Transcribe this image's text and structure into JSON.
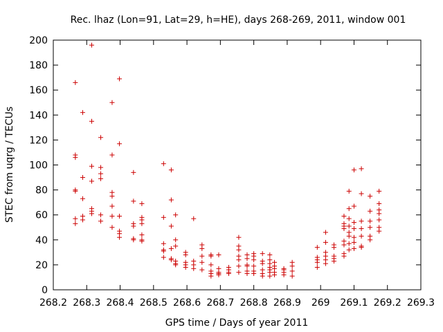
{
  "chart_data": {
    "type": "scatter",
    "title": "Rec. lhaz (Lon=91, Lat=29, h=HE), days 268-269, 2011, window 001",
    "xlabel": "GPS time / Days of year 2011",
    "ylabel": "STEC from uqrg / TECUs",
    "xlim": [
      268.2,
      269.3
    ],
    "ylim": [
      0,
      200
    ],
    "x_ticks": [
      268.2,
      268.3,
      268.4,
      268.5,
      268.6,
      268.7,
      268.8,
      268.9,
      269,
      269.1,
      269.2,
      269.3
    ],
    "x_tick_labels": [
      "268.2",
      "268.3",
      "268.4",
      "268.5",
      "268.6",
      "268.7",
      "268.8",
      "268.9",
      "269",
      "269.1",
      "269.2",
      "269.3"
    ],
    "y_ticks": [
      0,
      20,
      40,
      60,
      80,
      100,
      120,
      140,
      160,
      180,
      200
    ],
    "y_tick_labels": [
      "0",
      "20",
      "40",
      "60",
      "80",
      "100",
      "120",
      "140",
      "160",
      "180",
      "200"
    ],
    "grid": false,
    "marker": "plus",
    "marker_color": "#cc0000",
    "points": [
      [
        268.266,
        166
      ],
      [
        268.266,
        108
      ],
      [
        268.266,
        106
      ],
      [
        268.266,
        80
      ],
      [
        268.266,
        79
      ],
      [
        268.266,
        57
      ],
      [
        268.266,
        53
      ],
      [
        268.288,
        142
      ],
      [
        268.288,
        90
      ],
      [
        268.288,
        73
      ],
      [
        268.288,
        59
      ],
      [
        268.288,
        56
      ],
      [
        268.315,
        196
      ],
      [
        268.315,
        135
      ],
      [
        268.315,
        99
      ],
      [
        268.315,
        87
      ],
      [
        268.315,
        65
      ],
      [
        268.315,
        63
      ],
      [
        268.315,
        61
      ],
      [
        268.342,
        122
      ],
      [
        268.342,
        98
      ],
      [
        268.342,
        93
      ],
      [
        268.342,
        89
      ],
      [
        268.342,
        60
      ],
      [
        268.342,
        55
      ],
      [
        268.376,
        150
      ],
      [
        268.376,
        108
      ],
      [
        268.376,
        78
      ],
      [
        268.376,
        75
      ],
      [
        268.376,
        67
      ],
      [
        268.376,
        59
      ],
      [
        268.376,
        50
      ],
      [
        268.398,
        169
      ],
      [
        268.398,
        117
      ],
      [
        268.398,
        59
      ],
      [
        268.398,
        47
      ],
      [
        268.398,
        45
      ],
      [
        268.398,
        42
      ],
      [
        268.44,
        94
      ],
      [
        268.44,
        71
      ],
      [
        268.44,
        53
      ],
      [
        268.44,
        51
      ],
      [
        268.44,
        41
      ],
      [
        268.44,
        40
      ],
      [
        268.465,
        69
      ],
      [
        268.465,
        58
      ],
      [
        268.465,
        56
      ],
      [
        268.465,
        53
      ],
      [
        268.465,
        44
      ],
      [
        268.465,
        40
      ],
      [
        268.465,
        39
      ],
      [
        268.53,
        101
      ],
      [
        268.53,
        58
      ],
      [
        268.53,
        37
      ],
      [
        268.53,
        32
      ],
      [
        268.53,
        31
      ],
      [
        268.53,
        26
      ],
      [
        268.553,
        96
      ],
      [
        268.553,
        72
      ],
      [
        268.553,
        51
      ],
      [
        268.553,
        33
      ],
      [
        268.553,
        25
      ],
      [
        268.553,
        24
      ],
      [
        268.566,
        60
      ],
      [
        268.566,
        40
      ],
      [
        268.566,
        35
      ],
      [
        268.566,
        23
      ],
      [
        268.566,
        21
      ],
      [
        268.566,
        20
      ],
      [
        268.596,
        30
      ],
      [
        268.596,
        28
      ],
      [
        268.596,
        22
      ],
      [
        268.596,
        20
      ],
      [
        268.596,
        18
      ],
      [
        268.62,
        57
      ],
      [
        268.62,
        23
      ],
      [
        268.62,
        20
      ],
      [
        268.62,
        17
      ],
      [
        268.645,
        36
      ],
      [
        268.645,
        33
      ],
      [
        268.645,
        27
      ],
      [
        268.645,
        22
      ],
      [
        268.645,
        16
      ],
      [
        268.672,
        28
      ],
      [
        268.672,
        27
      ],
      [
        268.672,
        20
      ],
      [
        268.672,
        15
      ],
      [
        268.672,
        13
      ],
      [
        268.672,
        11
      ],
      [
        268.695,
        28
      ],
      [
        268.695,
        17
      ],
      [
        268.695,
        14
      ],
      [
        268.695,
        13
      ],
      [
        268.695,
        12
      ],
      [
        268.725,
        18
      ],
      [
        268.725,
        16
      ],
      [
        268.725,
        14
      ],
      [
        268.725,
        13
      ],
      [
        268.755,
        42
      ],
      [
        268.755,
        35
      ],
      [
        268.755,
        32
      ],
      [
        268.755,
        27
      ],
      [
        268.755,
        24
      ],
      [
        268.755,
        19
      ],
      [
        268.755,
        14
      ],
      [
        268.78,
        28
      ],
      [
        268.78,
        25
      ],
      [
        268.78,
        20
      ],
      [
        268.78,
        19
      ],
      [
        268.78,
        15
      ],
      [
        268.78,
        13
      ],
      [
        268.8,
        29
      ],
      [
        268.8,
        27
      ],
      [
        268.8,
        24
      ],
      [
        268.8,
        19
      ],
      [
        268.8,
        15
      ],
      [
        268.8,
        13
      ],
      [
        268.826,
        29
      ],
      [
        268.826,
        23
      ],
      [
        268.826,
        21
      ],
      [
        268.826,
        16
      ],
      [
        268.826,
        13
      ],
      [
        268.826,
        11
      ],
      [
        268.848,
        28
      ],
      [
        268.848,
        24
      ],
      [
        268.848,
        21
      ],
      [
        268.848,
        18
      ],
      [
        268.848,
        16
      ],
      [
        268.848,
        14
      ],
      [
        268.848,
        11
      ],
      [
        268.862,
        22
      ],
      [
        268.862,
        19
      ],
      [
        268.862,
        17
      ],
      [
        268.862,
        14
      ],
      [
        268.862,
        12
      ],
      [
        268.89,
        17
      ],
      [
        268.89,
        16
      ],
      [
        268.89,
        14
      ],
      [
        268.89,
        12
      ],
      [
        268.915,
        22
      ],
      [
        268.915,
        19
      ],
      [
        268.915,
        15
      ],
      [
        268.915,
        11
      ],
      [
        268.99,
        34
      ],
      [
        268.99,
        26
      ],
      [
        268.99,
        24
      ],
      [
        268.99,
        22
      ],
      [
        268.99,
        18
      ],
      [
        269.015,
        46
      ],
      [
        269.015,
        38
      ],
      [
        269.015,
        30
      ],
      [
        269.015,
        27
      ],
      [
        269.015,
        24
      ],
      [
        269.015,
        21
      ],
      [
        269.04,
        36
      ],
      [
        269.04,
        34
      ],
      [
        269.04,
        27
      ],
      [
        269.04,
        25
      ],
      [
        269.04,
        23
      ],
      [
        269.07,
        59
      ],
      [
        269.07,
        53
      ],
      [
        269.07,
        51
      ],
      [
        269.07,
        49
      ],
      [
        269.07,
        39
      ],
      [
        269.07,
        36
      ],
      [
        269.07,
        29
      ],
      [
        269.07,
        27
      ],
      [
        269.085,
        79
      ],
      [
        269.085,
        65
      ],
      [
        269.085,
        57
      ],
      [
        269.085,
        51
      ],
      [
        269.085,
        46
      ],
      [
        269.085,
        43
      ],
      [
        269.085,
        37
      ],
      [
        269.085,
        32
      ],
      [
        269.1,
        96
      ],
      [
        269.1,
        67
      ],
      [
        269.1,
        54
      ],
      [
        269.1,
        49
      ],
      [
        269.1,
        42
      ],
      [
        269.1,
        38
      ],
      [
        269.1,
        33
      ],
      [
        269.122,
        97
      ],
      [
        269.122,
        77
      ],
      [
        269.122,
        55
      ],
      [
        269.122,
        49
      ],
      [
        269.122,
        43
      ],
      [
        269.122,
        35
      ],
      [
        269.122,
        34
      ],
      [
        269.148,
        75
      ],
      [
        269.148,
        63
      ],
      [
        269.148,
        55
      ],
      [
        269.148,
        50
      ],
      [
        269.148,
        43
      ],
      [
        269.148,
        40
      ],
      [
        269.175,
        79
      ],
      [
        269.175,
        69
      ],
      [
        269.175,
        64
      ],
      [
        269.175,
        61
      ],
      [
        269.175,
        56
      ],
      [
        269.175,
        50
      ],
      [
        269.175,
        47
      ]
    ]
  }
}
